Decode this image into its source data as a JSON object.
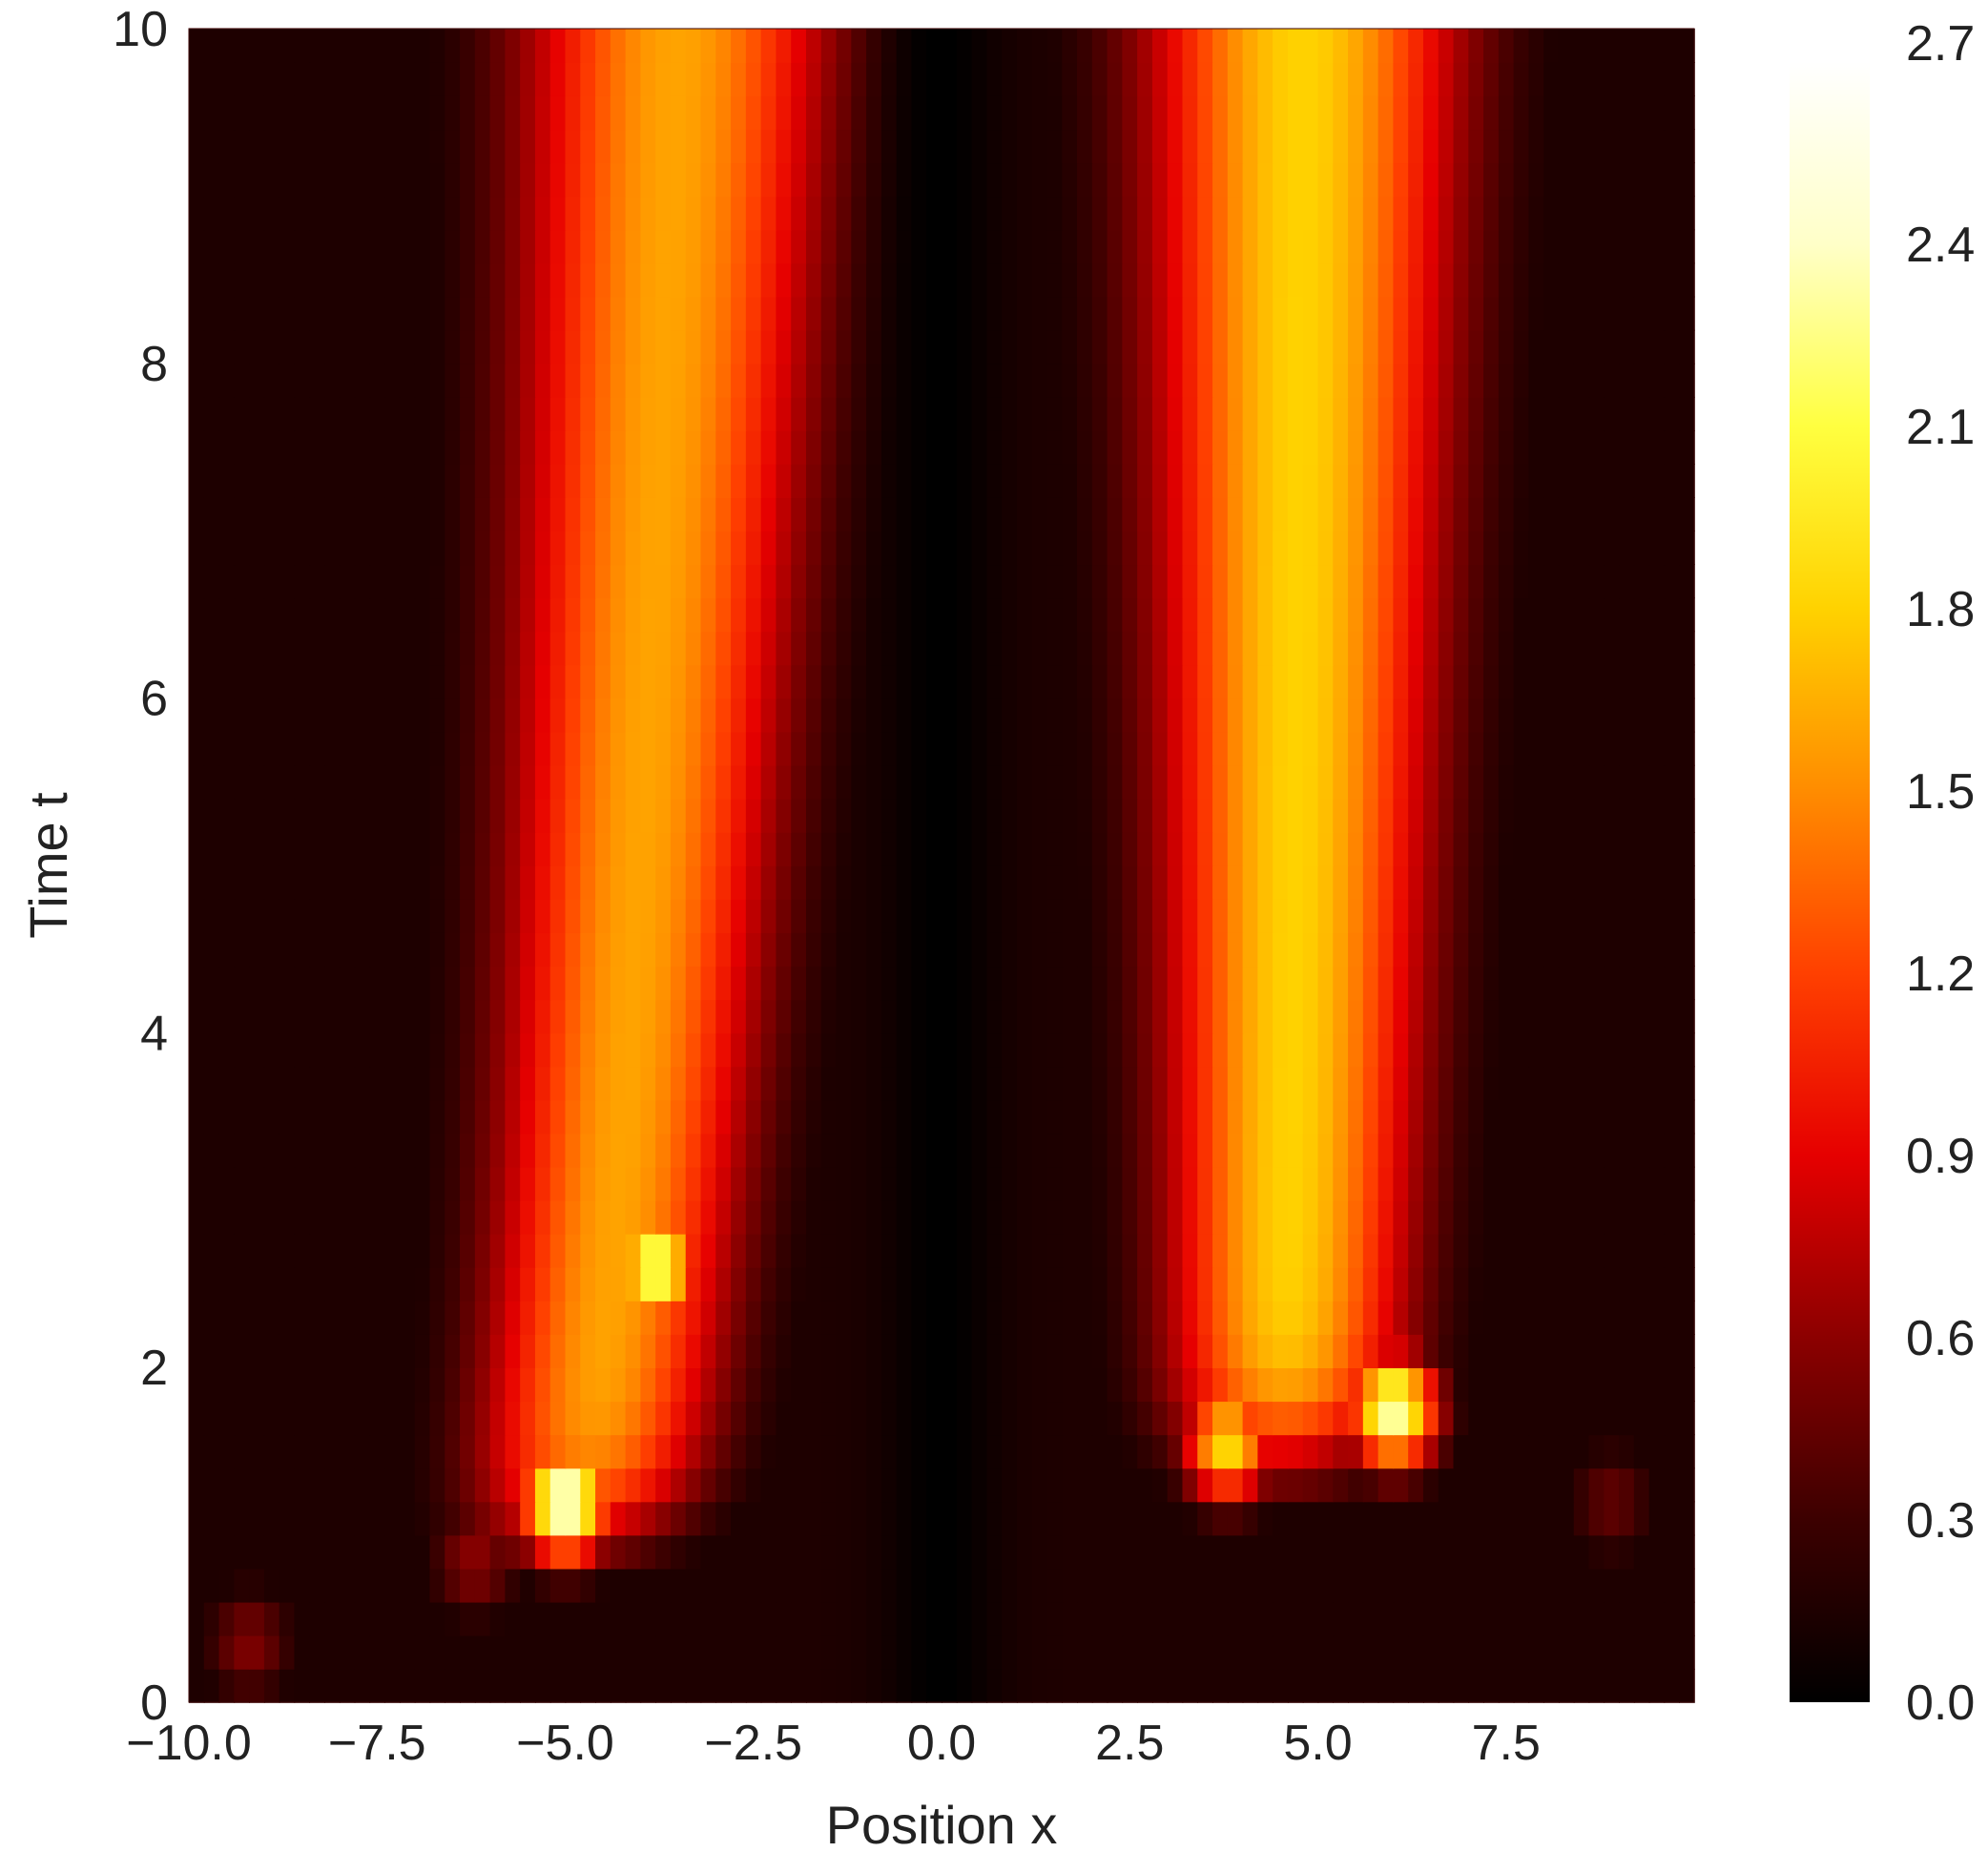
{
  "chart_data": {
    "type": "heatmap",
    "title": "",
    "xlabel": "Position x",
    "ylabel": "Time t",
    "xlim": [
      -10,
      10
    ],
    "ylim": [
      0,
      10
    ],
    "x_ticks": [
      -10.0,
      -7.5,
      -5.0,
      -2.5,
      0.0,
      2.5,
      5.0,
      7.5
    ],
    "x_tick_labels": [
      "−10.0",
      "−7.5",
      "−5.0",
      "−2.5",
      "0.0",
      "2.5",
      "5.0",
      "7.5"
    ],
    "y_ticks": [
      0,
      2,
      4,
      6,
      8,
      10
    ],
    "y_tick_labels": [
      "0",
      "2",
      "4",
      "6",
      "8",
      "10"
    ],
    "colorbar": {
      "min": 0.0,
      "max": 2.7,
      "ticks": [
        0.0,
        0.3,
        0.6,
        0.9,
        1.2,
        1.5,
        1.8,
        2.1,
        2.4,
        2.7
      ],
      "tick_labels": [
        "0.0",
        "0.3",
        "0.6",
        "0.9",
        "1.2",
        "1.5",
        "1.8",
        "2.1",
        "2.4",
        "2.7"
      ],
      "colormap": "hot"
    },
    "colormap_stops": [
      "#000000",
      "#3c0000",
      "#8c0000",
      "#e60000",
      "#ff4000",
      "#ff8c00",
      "#ffd200",
      "#ffff40",
      "#ffffc8",
      "#ffffff"
    ],
    "grid": false,
    "features": [
      {
        "kind": "ridge",
        "x_start": -5.0,
        "t_start": 1.0,
        "x_end": -3.5,
        "t_end": 10,
        "peak_value": 1.6
      },
      {
        "kind": "ridge",
        "x_start": 4.5,
        "t_start": 1.5,
        "x_end": 4.8,
        "t_end": 10,
        "peak_value": 1.8
      },
      {
        "kind": "hotspot",
        "x": -5.0,
        "t": 1.2,
        "value": 2.6
      },
      {
        "kind": "hotspot",
        "x": -3.8,
        "t": 2.6,
        "value": 2.3
      },
      {
        "kind": "hotspot",
        "x": 6.0,
        "t": 1.75,
        "value": 2.4
      },
      {
        "kind": "hotspot",
        "x": 3.8,
        "t": 1.55,
        "value": 1.9
      },
      {
        "kind": "hotspot",
        "x": -6.2,
        "t": 0.85,
        "value": 0.6
      },
      {
        "kind": "hotspot",
        "x": -9.2,
        "t": 0.35,
        "value": 0.55
      },
      {
        "kind": "hotspot",
        "x": 8.9,
        "t": 1.2,
        "value": 0.45
      },
      {
        "kind": "trough",
        "x": 0.0,
        "t_from": 0,
        "t_to": 10,
        "value": 0.0
      }
    ]
  }
}
